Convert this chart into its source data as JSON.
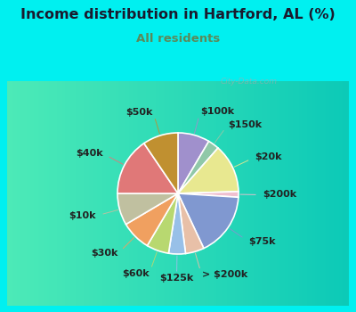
{
  "title": "Income distribution in Hartford, AL (%)",
  "subtitle": "All residents",
  "title_color": "#1a1a2e",
  "subtitle_color": "#5a8a5a",
  "bg_color": "#00f0f0",
  "chart_bg_left": "#d0ede0",
  "chart_bg_right": "#f0f8f0",
  "watermark": "City-Data.com",
  "slices": [
    {
      "label": "$100k",
      "value": 8.5,
      "color": "#a090cc"
    },
    {
      "label": "$150k",
      "value": 3.0,
      "color": "#90c8a8"
    },
    {
      "label": "$20k",
      "value": 13.0,
      "color": "#e8e890"
    },
    {
      "label": "$200k",
      "value": 1.5,
      "color": "#f0c0d0"
    },
    {
      "label": "$75k",
      "value": 17.0,
      "color": "#8098d0"
    },
    {
      "label": "> $200k",
      "value": 5.0,
      "color": "#e8c0a8"
    },
    {
      "label": "$125k",
      "value": 4.5,
      "color": "#98c0e8"
    },
    {
      "label": "$60k",
      "value": 6.0,
      "color": "#b8d870"
    },
    {
      "label": "$30k",
      "value": 8.0,
      "color": "#f0a060"
    },
    {
      "label": "$10k",
      "value": 8.5,
      "color": "#c0c0a0"
    },
    {
      "label": "$40k",
      "value": 15.5,
      "color": "#e07878"
    },
    {
      "label": "$50k",
      "value": 9.5,
      "color": "#c09030"
    }
  ],
  "label_fontsize": 8.0,
  "title_fontsize": 11.5,
  "subtitle_fontsize": 9.5
}
